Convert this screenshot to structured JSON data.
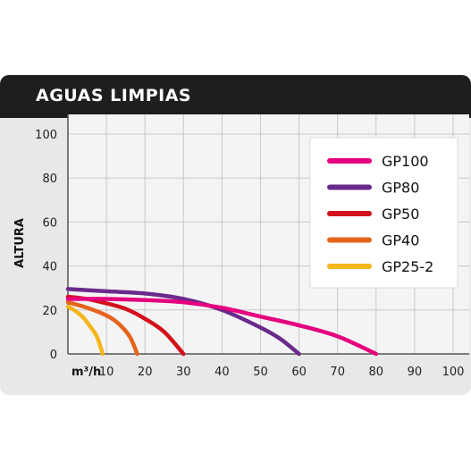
{
  "header": {
    "title": "AGUAS LIMPIAS"
  },
  "colors": {
    "GP100": "#e5007e",
    "GP80": "#6a2a8c",
    "GP50": "#d3111b",
    "GP40": "#e5641e",
    "GP25-2": "#f5b51c"
  },
  "chart_data": {
    "type": "line",
    "title": "AGUAS LIMPIAS",
    "xlabel": "m³/h",
    "ylabel": "ALTURA",
    "xlim": [
      0,
      100
    ],
    "ylim": [
      0,
      100
    ],
    "xticks": [
      10,
      20,
      30,
      40,
      50,
      60,
      70,
      80,
      90,
      100
    ],
    "yticks": [
      0,
      20,
      40,
      60,
      80,
      100
    ],
    "grid": true,
    "legend_position": "top-right",
    "series": [
      {
        "name": "GP100",
        "x": [
          0,
          10,
          20,
          30,
          40,
          50,
          60,
          70,
          80
        ],
        "y": [
          25,
          25,
          24.5,
          23.5,
          21,
          17,
          13,
          8,
          0
        ]
      },
      {
        "name": "GP80",
        "x": [
          0,
          10,
          20,
          30,
          40,
          50,
          55,
          60
        ],
        "y": [
          29.5,
          28.5,
          27.5,
          25,
          20,
          12,
          7,
          0
        ]
      },
      {
        "name": "GP50",
        "x": [
          0,
          5,
          10,
          15,
          20,
          25,
          30
        ],
        "y": [
          26,
          25,
          23,
          20.5,
          16,
          10,
          0
        ]
      },
      {
        "name": "GP40",
        "x": [
          0,
          5,
          10,
          13,
          16,
          18
        ],
        "y": [
          23.5,
          21,
          17.5,
          14,
          8,
          0
        ]
      },
      {
        "name": "GP25-2",
        "x": [
          0,
          2,
          4,
          6,
          7.5,
          8.5,
          9
        ],
        "y": [
          21.5,
          19.5,
          16.5,
          12,
          8,
          3,
          0
        ]
      }
    ]
  }
}
